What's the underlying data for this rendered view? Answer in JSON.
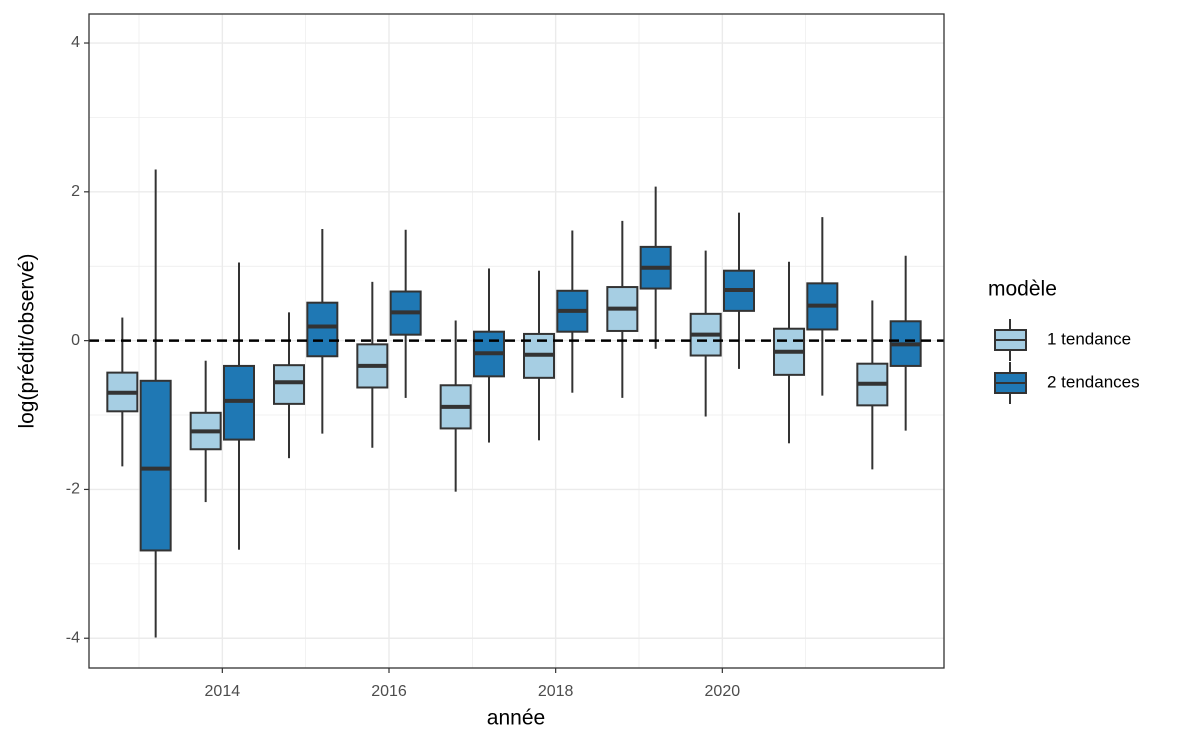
{
  "chart_data": {
    "type": "boxplot",
    "x_label": "année",
    "y_label": "log(prédit/observé)",
    "x": [
      2013,
      2014,
      2015,
      2016,
      2017,
      2018,
      2019,
      2020,
      2021,
      2022
    ],
    "xlim": [
      2012.4,
      2022.66
    ],
    "xticks": [
      2014,
      2016,
      2018,
      2020
    ],
    "x_minor_grid": [
      2013,
      2015,
      2017,
      2019,
      2021
    ],
    "ylim": [
      -4.4,
      4.39
    ],
    "yticks": [
      -4,
      -2,
      0,
      2,
      4
    ],
    "y_minor_grid": [
      -3,
      -1,
      1,
      3
    ],
    "grid": true,
    "hline": 0,
    "legend_title": "modèle",
    "legend_position": "right",
    "series": [
      {
        "name": "1 tendance",
        "color": "#a6cee3",
        "whisker_low": [
          -1.69,
          -2.17,
          -1.58,
          -1.44,
          -2.03,
          -1.34,
          -0.77,
          -1.02,
          -1.38,
          -1.73
        ],
        "q1": [
          -0.95,
          -1.46,
          -0.85,
          -0.63,
          -1.18,
          -0.5,
          0.13,
          -0.2,
          -0.46,
          -0.87
        ],
        "median": [
          -0.7,
          -1.22,
          -0.56,
          -0.34,
          -0.89,
          -0.19,
          0.43,
          0.08,
          -0.15,
          -0.58
        ],
        "q3": [
          -0.43,
          -0.97,
          -0.33,
          -0.05,
          -0.6,
          0.09,
          0.72,
          0.36,
          0.16,
          -0.31
        ],
        "whisker_high": [
          0.31,
          -0.27,
          0.38,
          0.79,
          0.27,
          0.94,
          1.61,
          1.21,
          1.06,
          0.54
        ]
      },
      {
        "name": "2 tendances",
        "color": "#1f78b4",
        "whisker_low": [
          -3.99,
          -2.81,
          -1.25,
          -0.77,
          -1.37,
          -0.7,
          -0.11,
          -0.38,
          -0.74,
          -1.21
        ],
        "q1": [
          -2.82,
          -1.33,
          -0.21,
          0.08,
          -0.48,
          0.12,
          0.7,
          0.4,
          0.15,
          -0.34
        ],
        "median": [
          -1.72,
          -0.81,
          0.19,
          0.38,
          -0.17,
          0.4,
          0.98,
          0.68,
          0.47,
          -0.05
        ],
        "q3": [
          -0.54,
          -0.34,
          0.51,
          0.66,
          0.12,
          0.67,
          1.26,
          0.94,
          0.77,
          0.26
        ],
        "whisker_high": [
          2.3,
          1.05,
          1.5,
          1.49,
          0.97,
          1.48,
          2.07,
          1.72,
          1.66,
          1.14
        ]
      }
    ]
  }
}
